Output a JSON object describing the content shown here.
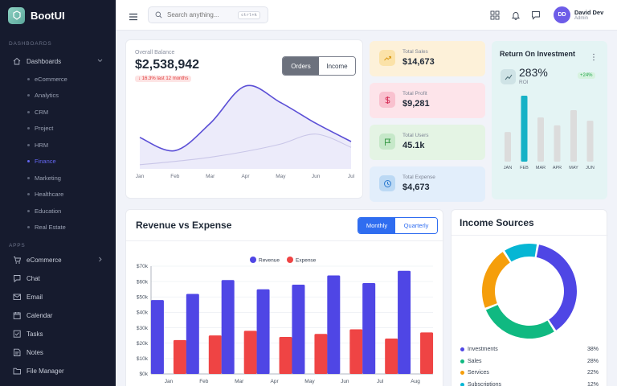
{
  "brand": {
    "name": "BootUI"
  },
  "sidebar": {
    "section_dashboards": "DASHBOARDS",
    "dashboards_label": "Dashboards",
    "dashboard_items": [
      "eCommerce",
      "Analytics",
      "CRM",
      "Project",
      "HRM",
      "Finance",
      "Marketing",
      "Healthcare",
      "Education",
      "Real Estate"
    ],
    "active_item": "Finance",
    "section_apps": "APPS",
    "apps": [
      {
        "label": "eCommerce",
        "icon": "cart-icon",
        "chevron": true
      },
      {
        "label": "Chat",
        "icon": "chat-icon",
        "chevron": false
      },
      {
        "label": "Email",
        "icon": "mail-icon",
        "chevron": false
      },
      {
        "label": "Calendar",
        "icon": "calendar-icon",
        "chevron": false
      },
      {
        "label": "Tasks",
        "icon": "check-square-icon",
        "chevron": false
      },
      {
        "label": "Notes",
        "icon": "note-icon",
        "chevron": false
      },
      {
        "label": "File Manager",
        "icon": "folder-icon",
        "chevron": false
      }
    ]
  },
  "topbar": {
    "search_placeholder": "Search anything...",
    "search_shortcut": "ctrl+k",
    "user_initials": "DD",
    "user_name": "David Dev",
    "user_role": "Admin"
  },
  "balance": {
    "label": "Overall Balance",
    "value": "$2,538,942",
    "change": "↓ 16.3% last 12 months",
    "tabs": [
      "Orders",
      "Income"
    ],
    "active_tab": "Orders"
  },
  "balance_chart": {
    "type": "area",
    "categories": [
      "Jan",
      "Feb",
      "Mar",
      "Apr",
      "May",
      "Jun",
      "Jul"
    ],
    "series": [
      {
        "values": [
          0.38,
          0.22,
          0.55,
          1.0,
          0.8,
          0.55,
          0.33
        ]
      },
      {
        "values": [
          0.05,
          0.09,
          0.14,
          0.21,
          0.3,
          0.42,
          0.26
        ]
      }
    ],
    "colors": [
      "#5b4fd6",
      "#c9c6e8"
    ]
  },
  "stats": [
    {
      "label": "Total Sales",
      "value": "$14,673",
      "icon": "trend-up-icon",
      "bg": "#fdf1d9",
      "icon_bg": "#fbe2a8",
      "icon_color": "#d99a17"
    },
    {
      "label": "Total Profit",
      "value": "$9,281",
      "icon": "dollar-icon",
      "bg": "#fde4ea",
      "icon_bg": "#f9c1cf",
      "icon_color": "#d6325a"
    },
    {
      "label": "Total Users",
      "value": "45.1k",
      "icon": "flag-icon",
      "bg": "#e4f4e4",
      "icon_bg": "#c6e8c9",
      "icon_color": "#3c9b4a"
    },
    {
      "label": "Total Expense",
      "value": "$4,673",
      "icon": "clock-icon",
      "bg": "#e2eefb",
      "icon_bg": "#bcd9f4",
      "icon_color": "#2d7bd0"
    }
  ],
  "roi": {
    "title": "Return On Investment",
    "value": "283%",
    "label": "ROI",
    "badge": "+24%"
  },
  "roi_chart": {
    "type": "bar",
    "categories": [
      "JAN",
      "FEB",
      "MAR",
      "APR",
      "MAY",
      "JUN"
    ],
    "values": [
      0.45,
      1.0,
      0.67,
      0.55,
      0.78,
      0.62
    ],
    "highlight_index": 1,
    "colors": {
      "bar": "#dcdcdc",
      "highlight": "#17b1c6"
    }
  },
  "revenue": {
    "title": "Revenue vs Expense",
    "tabs": [
      "Monthly",
      "Quarterly"
    ],
    "active_tab": "Monthly"
  },
  "chart_data": {
    "type": "bar",
    "categories": [
      "Jan",
      "Feb",
      "Mar",
      "Apr",
      "May",
      "Jun",
      "Jul",
      "Aug"
    ],
    "series": [
      {
        "name": "Revenue",
        "color": "#4f46e5",
        "values": [
          48000,
          52000,
          61000,
          55000,
          58000,
          64000,
          59000,
          67000
        ]
      },
      {
        "name": "Expense",
        "color": "#ef4444",
        "values": [
          22000,
          25000,
          28000,
          24000,
          26000,
          29000,
          23000,
          27000
        ]
      }
    ],
    "yticks": [
      "$0k",
      "$10k",
      "$20k",
      "$30k",
      "$40k",
      "$50k",
      "$60k",
      "$70k"
    ],
    "ylim": [
      0,
      70000
    ],
    "legend": "top-center",
    "grid": true
  },
  "income": {
    "title": "Income Sources",
    "sources": [
      {
        "name": "Investments",
        "pct": "38%",
        "value": 38,
        "color": "#4f46e5"
      },
      {
        "name": "Sales",
        "pct": "28%",
        "value": 28,
        "color": "#10b981"
      },
      {
        "name": "Services",
        "pct": "22%",
        "value": 22,
        "color": "#f59e0b"
      },
      {
        "name": "Subscriptions",
        "pct": "12%",
        "value": 12,
        "color": "#06b6d4"
      }
    ]
  }
}
